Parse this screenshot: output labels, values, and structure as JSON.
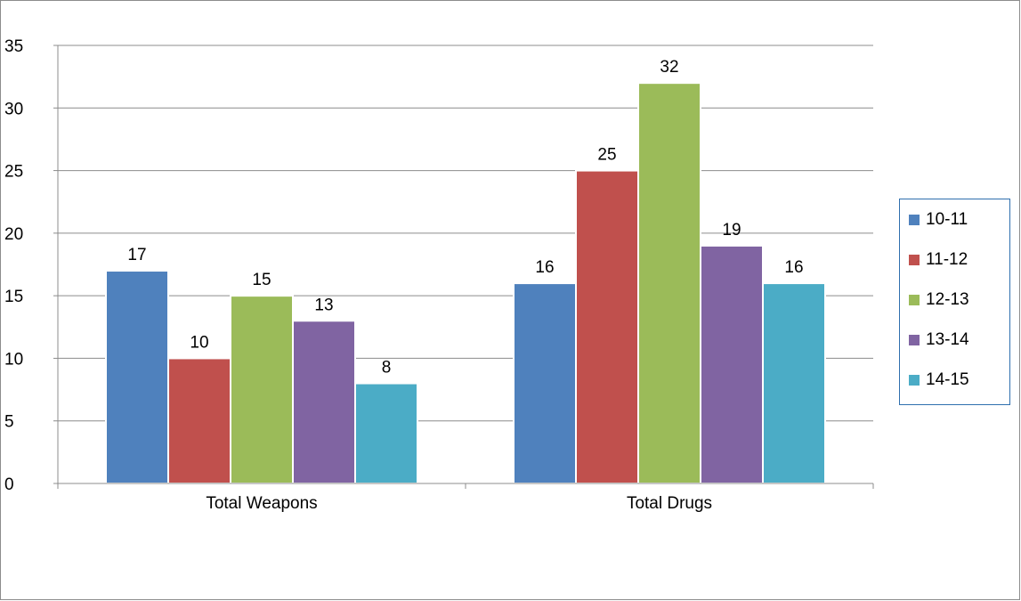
{
  "chart_data": {
    "type": "bar",
    "categories": [
      "Total Weapons",
      "Total Drugs"
    ],
    "series": [
      {
        "name": "10-11",
        "values": [
          17,
          16
        ],
        "color": "#4f81bd"
      },
      {
        "name": "11-12",
        "values": [
          10,
          25
        ],
        "color": "#c0504d"
      },
      {
        "name": "12-13",
        "values": [
          15,
          32
        ],
        "color": "#9bbb59"
      },
      {
        "name": "13-14",
        "values": [
          13,
          19
        ],
        "color": "#8064a2"
      },
      {
        "name": "14-15",
        "values": [
          8,
          16
        ],
        "color": "#4bacc6"
      }
    ],
    "yticks": [
      "0",
      "5",
      "10",
      "15",
      "20",
      "25",
      "30",
      "35"
    ],
    "ylim": [
      0,
      35
    ],
    "grid": true,
    "data_labels": true,
    "legend_position": "right"
  }
}
